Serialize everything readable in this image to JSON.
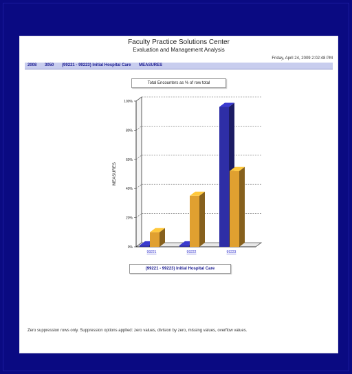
{
  "colors": {
    "background": "#0a0a82",
    "series_blue": "#2e2ea6",
    "series_orange": "#e0a030",
    "crumb_bg": "#c8cdee",
    "crumb_text": "#1a1a90"
  },
  "report": {
    "title": "Faculty Practice Solutions Center",
    "subtitle": "Evaluation and Management Analysis",
    "datetime": "Friday, April 24, 2009 2:02:48 PM",
    "breadcrumb": [
      "2008",
      "3050",
      "(99221 - 99223) Initial Hospital Care",
      "MEASURES"
    ],
    "chart_caption": "Total Encounters as % of row total",
    "legend_caption": "(99221 - 99223) Initial Hospital Care",
    "footnote": "Zero suppression rows only. Suppression options applied: zero values, division by zero, missing values, overflow values."
  },
  "chart_data": {
    "type": "bar",
    "title": "Total Encounters as % of row total",
    "xlabel": "",
    "ylabel": "MEASURES",
    "ylim": [
      0,
      100
    ],
    "yticks": [
      "0%",
      "20%",
      "40%",
      "60%",
      "80%",
      "100%"
    ],
    "categories": [
      "99221",
      "99222",
      "99223"
    ],
    "series": [
      {
        "values": [
          1,
          1,
          96
        ],
        "color": "#2e2ea6"
      },
      {
        "values": [
          10,
          35,
          52
        ],
        "color": "#e0a030"
      }
    ],
    "grid": true,
    "three_d": true
  }
}
